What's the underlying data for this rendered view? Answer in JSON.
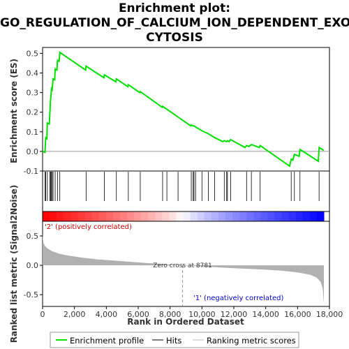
{
  "title_lines": [
    "Enrichment plot:",
    "GO_REGULATION_OF_CALCIUM_ION_DEPENDENT_EXO",
    "CYTOSIS"
  ],
  "colors": {
    "es_line": "#00e000",
    "hits": "#000000",
    "ranking_fill": "#b0b0b0",
    "positive_label": "#cc0000",
    "negative_label": "#0000cc"
  },
  "chart_data": {
    "type": "line",
    "xlabel": "Rank in Ordered Dataset",
    "x_ticks": [
      0,
      2000,
      4000,
      6000,
      8000,
      10000,
      12000,
      14000,
      16000,
      18000
    ],
    "x_tick_labels": [
      "0",
      "2,000",
      "4,000",
      "6,000",
      "8,000",
      "10,000",
      "12,000",
      "14,000",
      "16,000",
      "18,000"
    ],
    "xlim": [
      0,
      18000
    ],
    "n_genes": 17650,
    "es_panel": {
      "ylabel": "Enrichment score (ES)",
      "ylim": [
        -0.1,
        0.53
      ],
      "y_ticks": [
        -0.1,
        0.0,
        0.1,
        0.2,
        0.3,
        0.4,
        0.5
      ],
      "y_tick_labels": [
        "-0.1",
        "0.0",
        "0.1",
        "0.2",
        "0.3",
        "0.4",
        "0.5"
      ],
      "points": [
        [
          0,
          0.0
        ],
        [
          150,
          -0.005
        ],
        [
          200,
          0.07
        ],
        [
          270,
          0.065
        ],
        [
          300,
          0.145
        ],
        [
          420,
          0.14
        ],
        [
          460,
          0.2
        ],
        [
          500,
          0.26
        ],
        [
          560,
          0.32
        ],
        [
          600,
          0.315
        ],
        [
          660,
          0.37
        ],
        [
          760,
          0.365
        ],
        [
          790,
          0.42
        ],
        [
          900,
          0.415
        ],
        [
          940,
          0.465
        ],
        [
          1040,
          0.46
        ],
        [
          1080,
          0.505
        ],
        [
          2700,
          0.415
        ],
        [
          2730,
          0.435
        ],
        [
          3850,
          0.375
        ],
        [
          3880,
          0.39
        ],
        [
          4600,
          0.355
        ],
        [
          4630,
          0.37
        ],
        [
          5350,
          0.33
        ],
        [
          5380,
          0.34
        ],
        [
          6100,
          0.3
        ],
        [
          6130,
          0.305
        ],
        [
          7500,
          0.225
        ],
        [
          7530,
          0.23
        ],
        [
          7800,
          0.215
        ],
        [
          8500,
          0.175
        ],
        [
          9300,
          0.13
        ],
        [
          9330,
          0.135
        ],
        [
          9450,
          0.13
        ],
        [
          9500,
          0.13
        ],
        [
          9600,
          0.125
        ],
        [
          10000,
          0.105
        ],
        [
          10400,
          0.09
        ],
        [
          10800,
          0.07
        ],
        [
          11300,
          0.05
        ],
        [
          11400,
          0.055
        ],
        [
          11550,
          0.05
        ],
        [
          11600,
          0.055
        ],
        [
          11700,
          0.05
        ],
        [
          11800,
          0.06
        ],
        [
          12700,
          0.02
        ],
        [
          12800,
          0.03
        ],
        [
          12950,
          0.025
        ],
        [
          13100,
          0.035
        ],
        [
          13600,
          0.02
        ],
        [
          13650,
          0.03
        ],
        [
          15500,
          -0.075
        ],
        [
          15600,
          -0.04
        ],
        [
          15700,
          -0.045
        ],
        [
          15800,
          -0.015
        ],
        [
          16100,
          -0.025
        ],
        [
          16150,
          0.01
        ],
        [
          17300,
          -0.05
        ],
        [
          17350,
          0.02
        ],
        [
          17650,
          0.005
        ]
      ]
    },
    "hits": [
      150,
      200,
      300,
      460,
      500,
      560,
      600,
      660,
      790,
      940,
      1080,
      2730,
      3880,
      4630,
      5380,
      6130,
      7530,
      7800,
      8500,
      9330,
      9450,
      9500,
      9600,
      10000,
      10400,
      10800,
      11400,
      11550,
      11600,
      11800,
      12800,
      13100,
      13650,
      15600,
      15800,
      16150,
      17350
    ],
    "ranking_panel": {
      "ylabel": "Ranked list metric (Signal2Noise)",
      "ylim": [
        -0.7,
        0.75
      ],
      "y_ticks": [
        -0.5,
        0.0,
        0.5
      ],
      "y_tick_labels": [
        "-0.5",
        "0.0",
        "0.5"
      ],
      "zero_cross_rank": 8781,
      "zero_cross_label": "Zero cross at 8781",
      "positive_label": "'2' (positively correlated)",
      "negative_label": "'1' (negatively correlated)",
      "curve": [
        [
          0,
          0.55
        ],
        [
          20,
          0.45
        ],
        [
          60,
          0.38
        ],
        [
          150,
          0.33
        ],
        [
          300,
          0.29
        ],
        [
          600,
          0.24
        ],
        [
          1000,
          0.2
        ],
        [
          1500,
          0.17
        ],
        [
          2500,
          0.13
        ],
        [
          3500,
          0.1
        ],
        [
          4500,
          0.08
        ],
        [
          5500,
          0.06
        ],
        [
          6500,
          0.04
        ],
        [
          7500,
          0.02
        ],
        [
          8781,
          0.0
        ],
        [
          10000,
          -0.02
        ],
        [
          11000,
          -0.035
        ],
        [
          12000,
          -0.05
        ],
        [
          13000,
          -0.06
        ],
        [
          14000,
          -0.075
        ],
        [
          15000,
          -0.09
        ],
        [
          16000,
          -0.12
        ],
        [
          16800,
          -0.16
        ],
        [
          17200,
          -0.21
        ],
        [
          17450,
          -0.28
        ],
        [
          17580,
          -0.4
        ],
        [
          17650,
          -0.65
        ]
      ]
    },
    "legend": {
      "placement": "bottom",
      "entries": [
        "Enrichment profile",
        "Hits",
        "Ranking metric scores"
      ]
    }
  }
}
